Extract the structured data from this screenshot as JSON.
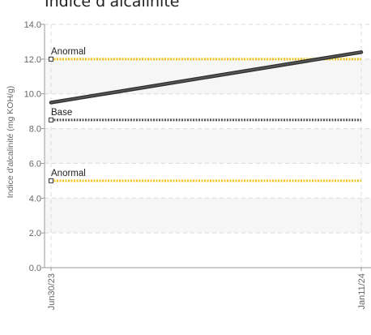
{
  "chart_data": {
    "type": "line",
    "title": "Indice d'alcalinité",
    "ylabel": "Indice d'alcalinité (mg KOH/g)",
    "xlabel": "",
    "ylim": [
      0,
      14
    ],
    "yticks": [
      "0.0",
      "2.0",
      "4.0",
      "6.0",
      "8.0",
      "10.0",
      "12.0",
      "14.0"
    ],
    "x": [
      "Jun30/23",
      "Jan11/24"
    ],
    "series": [
      {
        "values": [
          9.5,
          12.4
        ],
        "color": "#555555"
      }
    ],
    "reference_lines": [
      {
        "label": "Anormal",
        "value": 12.0,
        "color": "#f0c419",
        "style": "dotted"
      },
      {
        "label": "Base",
        "value": 8.5,
        "color": "#555555",
        "style": "dotted"
      },
      {
        "label": "Anormal",
        "value": 5.0,
        "color": "#f0c419",
        "style": "dotted"
      }
    ],
    "grid": true,
    "legend": "none"
  }
}
